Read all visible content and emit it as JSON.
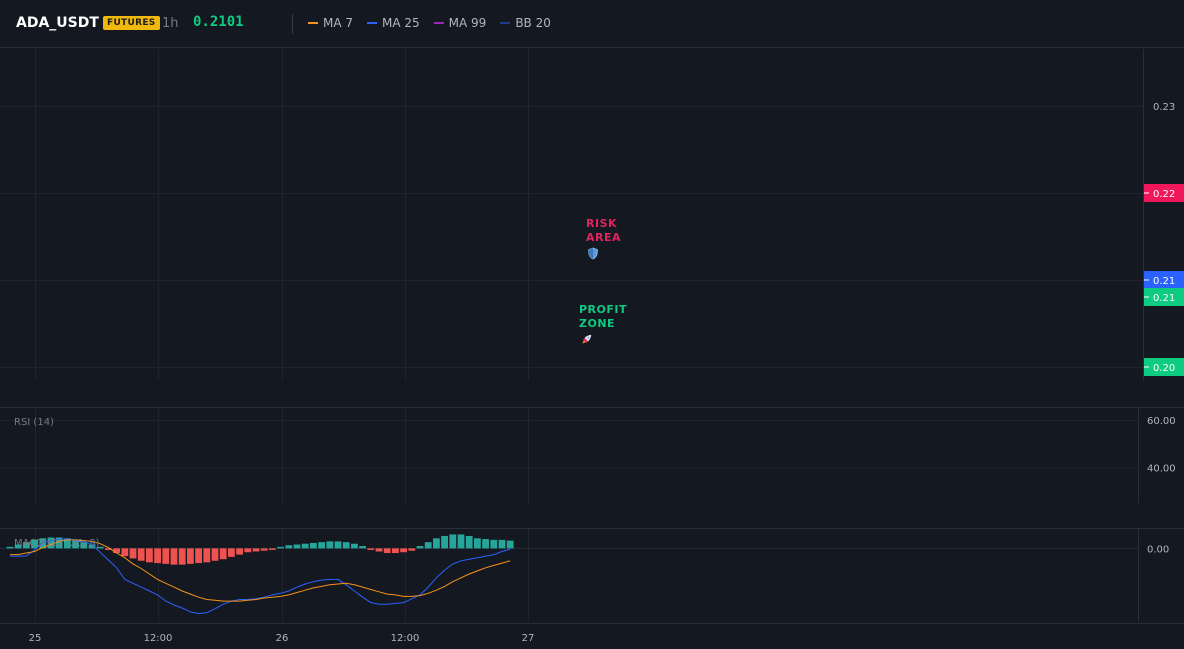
{
  "header": {
    "symbol": "ADA_USDT",
    "badge": "FUTURES",
    "interval": "1h",
    "price": "0.2101",
    "indicators": [
      {
        "label": "MA 7",
        "color": "#f7931a"
      },
      {
        "label": "MA 25",
        "color": "#2962ff"
      },
      {
        "label": "MA 99",
        "color": "#9c27b0"
      },
      {
        "label": "BB 20",
        "color": "#1e3a8a"
      }
    ]
  },
  "chart_data": [
    {
      "type": "line",
      "panel": "price",
      "y_ticks": [
        "0.23",
        "0.22",
        "0.21",
        "0.21",
        "0.20"
      ],
      "y_tick_values": [
        0.23,
        0.22,
        0.21,
        0.21,
        0.2
      ],
      "price_tags": [
        {
          "label": "0.22",
          "color": "#f0185a"
        },
        {
          "label": "0.21",
          "color": "#2962ff"
        },
        {
          "label": "0.21",
          "color": "#0ecb81"
        },
        {
          "label": "0.20",
          "color": "#0ecb81"
        }
      ],
      "annotations": [
        {
          "text": [
            "RISK",
            "AREA"
          ],
          "color": "#e0245e",
          "icon": "shield-icon"
        },
        {
          "text": [
            "PROFIT",
            "ZONE"
          ],
          "color": "#0ecb81",
          "icon": "rocket-icon"
        }
      ],
      "grid": true
    },
    {
      "type": "line",
      "panel": "rsi",
      "title": "RSI (14)",
      "y_ticks": [
        "60.00",
        "40.00"
      ],
      "ylim": [
        25,
        65
      ],
      "grid": true
    },
    {
      "type": "bar",
      "panel": "macd",
      "title": "MACD (12, 26, 9)",
      "y_ticks": [
        "0.00"
      ],
      "histogram": [
        0.0002,
        0.0005,
        0.0008,
        0.0011,
        0.0013,
        0.0014,
        0.0014,
        0.0013,
        0.0011,
        0.0008,
        0.0005,
        0.0002,
        -0.0002,
        -0.0006,
        -0.001,
        -0.0013,
        -0.0016,
        -0.0018,
        -0.0019,
        -0.002,
        -0.0021,
        -0.0021,
        -0.002,
        -0.0019,
        -0.0018,
        -0.0016,
        -0.0014,
        -0.0011,
        -0.0008,
        -0.0005,
        -0.0004,
        -0.0003,
        -0.0002,
        0.0002,
        0.0004,
        0.0005,
        0.0006,
        0.0007,
        0.0008,
        0.0009,
        0.0009,
        0.0008,
        0.0006,
        0.0003,
        -0.0002,
        -0.0004,
        -0.0006,
        -0.0006,
        -0.0005,
        -0.0003,
        0.0003,
        0.0008,
        0.0013,
        0.0016,
        0.0018,
        0.0018,
        0.0016,
        0.0013,
        0.0012,
        0.0011,
        0.0011,
        0.001
      ],
      "macd": [
        -0.001,
        -0.001,
        -0.001,
        -0.0002,
        0.0008,
        0.001,
        0.0012,
        0.0012,
        0.001,
        0.0009,
        0.0005,
        -0.0005,
        -0.0015,
        -0.0025,
        -0.004,
        -0.0045,
        -0.005,
        -0.0055,
        -0.006,
        -0.0068,
        -0.0073,
        -0.0077,
        -0.0082,
        -0.0084,
        -0.0083,
        -0.0078,
        -0.0072,
        -0.0068,
        -0.0066,
        -0.0066,
        -0.0065,
        -0.0063,
        -0.006,
        -0.0058,
        -0.0055,
        -0.005,
        -0.0046,
        -0.0043,
        -0.0041,
        -0.004,
        -0.004,
        -0.0047,
        -0.0055,
        -0.0063,
        -0.007,
        -0.0072,
        -0.0072,
        -0.0071,
        -0.007,
        -0.0065,
        -0.006,
        -0.005,
        -0.0038,
        -0.0028,
        -0.002,
        -0.0016,
        -0.0014,
        -0.0012,
        -0.001,
        -0.0008,
        -0.0004,
        -0.0001
      ],
      "signal": [
        -0.0008,
        -0.0008,
        -0.0006,
        -0.0004,
        0.0001,
        0.0005,
        0.0009,
        0.0011,
        0.0011,
        0.001,
        0.0009,
        0.0006,
        0.0001,
        -0.0006,
        -0.0012,
        -0.002,
        -0.0026,
        -0.0033,
        -0.004,
        -0.0045,
        -0.005,
        -0.0055,
        -0.0059,
        -0.0063,
        -0.0066,
        -0.0067,
        -0.0068,
        -0.0068,
        -0.0068,
        -0.0067,
        -0.0066,
        -0.0064,
        -0.0063,
        -0.0062,
        -0.006,
        -0.0057,
        -0.0054,
        -0.0051,
        -0.0049,
        -0.0047,
        -0.0046,
        -0.0045,
        -0.0047,
        -0.005,
        -0.0053,
        -0.0056,
        -0.0059,
        -0.006,
        -0.0062,
        -0.0062,
        -0.0061,
        -0.0058,
        -0.0054,
        -0.0049,
        -0.0043,
        -0.0038,
        -0.0033,
        -0.0029,
        -0.0025,
        -0.0022,
        -0.0019,
        -0.0016
      ],
      "ylim": [
        -0.0095,
        0.0025
      ],
      "grid": true
    }
  ],
  "x_axis": {
    "ticks": [
      {
        "label": "25",
        "index": 3
      },
      {
        "label": "12:00",
        "index": 15
      },
      {
        "label": "26",
        "index": 27
      },
      {
        "label": "12:00",
        "index": 39
      },
      {
        "label": "27",
        "index": 51
      }
    ]
  }
}
